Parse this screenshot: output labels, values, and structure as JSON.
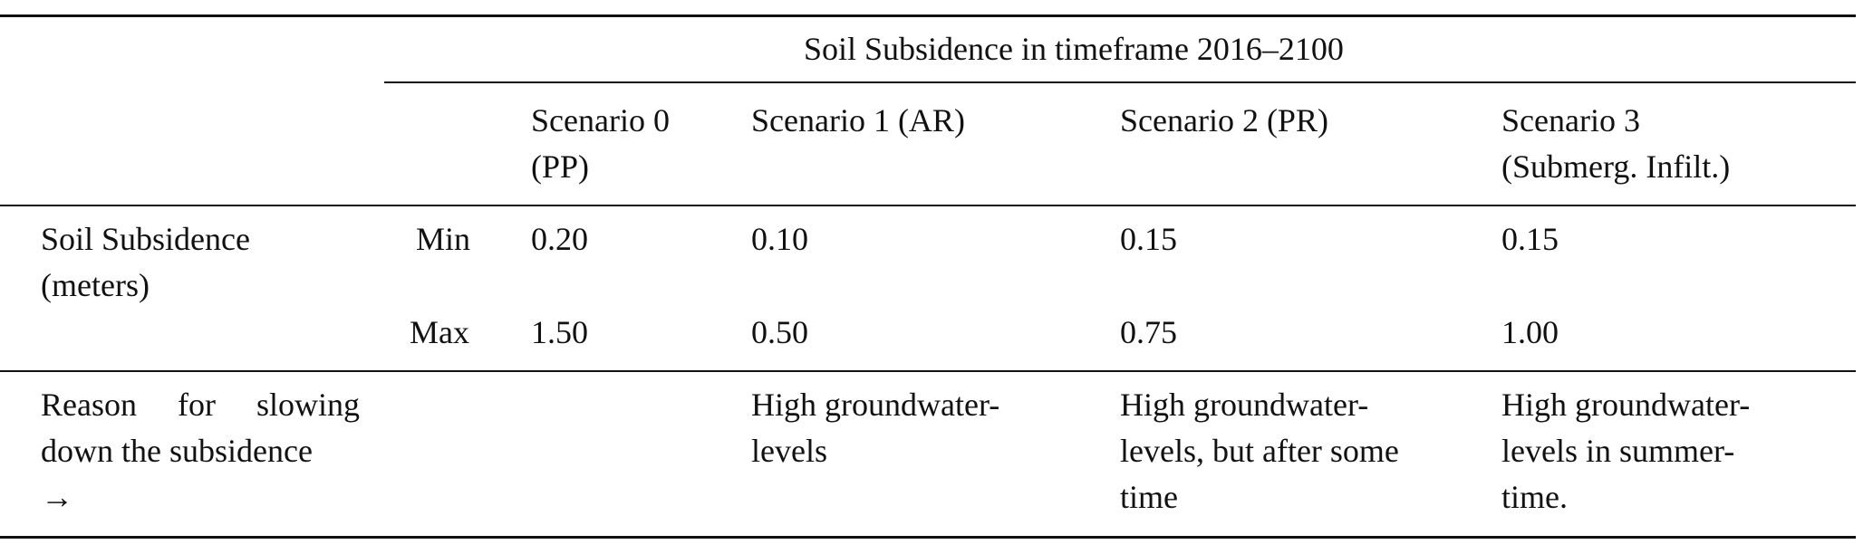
{
  "table": {
    "spanner": "Soil Subsidence in timeframe 2016–2100",
    "columns": [
      {
        "line1": "Scenario 0",
        "line2": "(PP)"
      },
      {
        "line1": "Scenario 1 (AR)",
        "line2": ""
      },
      {
        "line1": "Scenario 2 (PR)",
        "line2": ""
      },
      {
        "line1": "Scenario 3",
        "line2": "(Submerg. Infilt.)"
      }
    ],
    "row_label": {
      "line1": "Soil Subsidence",
      "line2": "(meters)"
    },
    "min_label": "Min",
    "max_label": "Max",
    "min_values": [
      "0.20",
      "0.10",
      "0.15",
      "0.15"
    ],
    "max_values": [
      "1.50",
      "0.50",
      "0.75",
      "1.00"
    ],
    "reason_label": {
      "line1": "Reason for slowing",
      "line2": "down the subsidence",
      "line3": "→"
    },
    "reasons": [
      {
        "line1": "",
        "line2": "",
        "line3": ""
      },
      {
        "line1": "High groundwater-",
        "line2": "levels",
        "line3": ""
      },
      {
        "line1": "High groundwater-",
        "line2": "levels, but after some",
        "line3": "time"
      },
      {
        "line1": "High groundwater-",
        "line2": "levels in summer-",
        "line3": "time."
      }
    ]
  }
}
